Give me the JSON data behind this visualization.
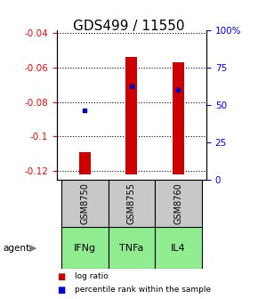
{
  "title": "GDS499 / 11550",
  "categories": [
    "GSM8750",
    "GSM8755",
    "GSM8760"
  ],
  "agents": [
    "IFNg",
    "TNFa",
    "IL4"
  ],
  "bar_tops": [
    -0.109,
    -0.054,
    -0.057
  ],
  "bar_bottom": -0.122,
  "blue_y": [
    -0.085,
    -0.071,
    -0.073
  ],
  "ylim_left": [
    -0.125,
    -0.038
  ],
  "ylim_right": [
    0,
    100
  ],
  "left_ticks": [
    -0.04,
    -0.06,
    -0.08,
    -0.1,
    -0.12
  ],
  "right_ticks": [
    0,
    25,
    50,
    75,
    100
  ],
  "right_tick_labels": [
    "0",
    "25",
    "50",
    "75",
    "100%"
  ],
  "bar_color": "#cc0000",
  "blue_color": "#0000cc",
  "gsm_bg": "#c8c8c8",
  "agent_bg": "#90ee90",
  "title_fontsize": 11,
  "bar_width": 0.25
}
